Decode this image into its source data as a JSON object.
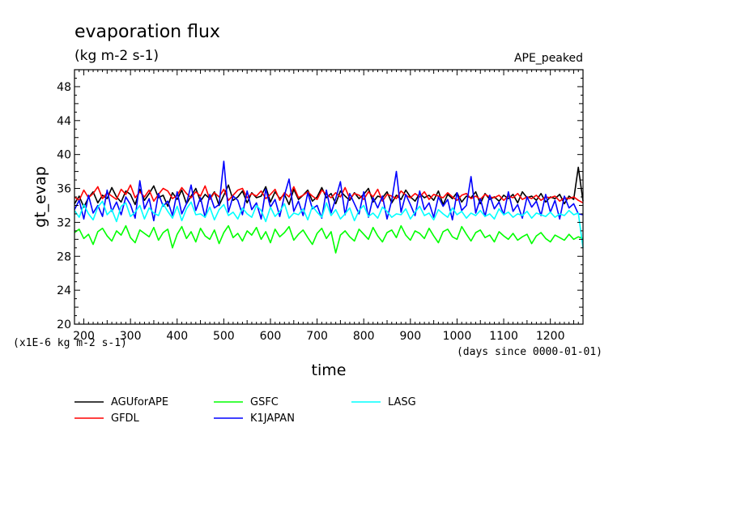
{
  "chart_data": {
    "type": "line",
    "title": "evaporation flux",
    "subtitle": "(kg m-2 s-1)",
    "case_label": "APE_peaked",
    "ylabel": "gt_evap",
    "xlabel": "time",
    "y_unit_note": "(x1E-6 kg m-2 s-1)",
    "x_unit_note": "(days since 0000-01-01)",
    "xlim": [
      180,
      1270
    ],
    "ylim": [
      20,
      50
    ],
    "x_ticks": [
      200,
      300,
      400,
      500,
      600,
      700,
      800,
      900,
      1000,
      1100,
      1200
    ],
    "y_ticks": [
      20,
      24,
      28,
      32,
      36,
      40,
      44,
      48
    ],
    "grid": false,
    "legend_position": "below",
    "x_sample_step": 10,
    "series": [
      {
        "name": "AGUforAPE",
        "color": "#000000",
        "values": [
          34.2,
          35.1,
          33.8,
          34.9,
          35.6,
          34.3,
          35.2,
          34.8,
          36.1,
          35.0,
          34.4,
          35.7,
          35.3,
          34.1,
          35.9,
          34.6,
          35.4,
          36.3,
          34.9,
          35.2,
          33.9,
          35.5,
          34.7,
          35.8,
          34.2,
          35.1,
          36.0,
          34.5,
          35.3,
          34.8,
          35.6,
          34.0,
          35.2,
          36.4,
          34.6,
          35.0,
          35.7,
          34.3,
          35.5,
          34.9,
          35.1,
          36.2,
          34.4,
          35.6,
          34.8,
          35.3,
          34.1,
          35.9,
          34.7,
          35.2,
          35.8,
          34.5,
          35.0,
          36.1,
          34.9,
          35.4,
          34.2,
          35.7,
          35.1,
          34.6,
          35.5,
          34.8,
          35.3,
          36.0,
          34.4,
          35.1,
          34.9,
          35.6,
          34.3,
          35.2,
          34.7,
          35.8,
          35.0,
          34.5,
          35.4,
          34.9,
          35.2,
          34.6,
          35.7,
          34.1,
          35.3,
          34.8,
          35.5,
          34.4,
          35.1,
          34.9,
          35.6,
          34.2,
          35.4,
          34.7,
          35.0,
          34.5,
          35.2,
          34.8,
          35.3,
          34.3,
          35.6,
          34.9,
          35.1,
          34.6,
          35.4,
          34.4,
          35.0,
          34.8,
          35.3,
          34.2,
          35.1,
          34.7,
          38.5,
          34.5
        ]
      },
      {
        "name": "GFDL",
        "color": "#ff0000",
        "values": [
          35.0,
          34.6,
          35.8,
          34.9,
          35.4,
          36.2,
          34.8,
          35.5,
          35.1,
          34.7,
          35.9,
          35.3,
          36.4,
          34.9,
          35.6,
          35.0,
          35.8,
          34.5,
          35.3,
          36.0,
          35.7,
          34.8,
          35.2,
          36.1,
          35.4,
          34.9,
          35.6,
          35.1,
          36.3,
          34.7,
          35.5,
          35.0,
          35.9,
          34.6,
          35.2,
          35.8,
          36.0,
          34.9,
          35.4,
          35.1,
          35.7,
          34.8,
          35.3,
          35.9,
          34.6,
          35.5,
          35.0,
          36.2,
          34.9,
          35.2,
          35.6,
          35.1,
          34.7,
          35.8,
          35.3,
          34.9,
          35.5,
          35.0,
          36.1,
          34.8,
          35.4,
          35.2,
          34.7,
          35.6,
          35.0,
          35.9,
          34.5,
          35.3,
          35.1,
          34.8,
          35.7,
          35.2,
          34.9,
          35.4,
          35.0,
          35.6,
          34.7,
          35.3,
          35.1,
          34.9,
          35.5,
          35.0,
          34.6,
          35.2,
          35.4,
          34.8,
          35.1,
          34.7,
          35.3,
          35.0,
          34.9,
          35.2,
          34.6,
          35.1,
          34.9,
          35.4,
          34.7,
          35.0,
          34.8,
          35.2,
          34.6,
          35.0,
          34.9,
          35.1,
          34.5,
          34.9,
          34.8,
          35.0,
          34.6,
          34.3
        ]
      },
      {
        "name": "GSFC",
        "color": "#00ff00",
        "values": [
          30.8,
          31.2,
          30.1,
          30.6,
          29.4,
          30.9,
          31.3,
          30.4,
          29.8,
          31.0,
          30.5,
          31.6,
          30.2,
          29.6,
          31.1,
          30.7,
          30.3,
          31.4,
          29.9,
          30.8,
          31.2,
          29.0,
          30.6,
          31.5,
          30.1,
          30.9,
          29.7,
          31.3,
          30.4,
          30.0,
          31.1,
          29.5,
          30.8,
          31.6,
          30.2,
          30.7,
          29.8,
          31.0,
          30.5,
          31.4,
          30.0,
          30.9,
          29.6,
          31.2,
          30.3,
          30.8,
          31.5,
          29.9,
          30.6,
          31.1,
          30.2,
          29.4,
          30.7,
          31.3,
          30.1,
          30.9,
          28.4,
          30.5,
          31.0,
          30.3,
          29.8,
          31.2,
          30.6,
          30.0,
          31.4,
          30.4,
          29.7,
          30.8,
          31.1,
          30.2,
          31.6,
          30.5,
          29.9,
          31.0,
          30.7,
          30.1,
          31.3,
          30.4,
          29.6,
          30.9,
          31.2,
          30.3,
          30.0,
          31.5,
          30.6,
          29.8,
          30.8,
          31.1,
          30.2,
          30.5,
          29.7,
          30.9,
          30.4,
          30.0,
          30.7,
          29.9,
          30.3,
          30.6,
          29.5,
          30.4,
          30.8,
          30.1,
          29.7,
          30.5,
          30.2,
          29.9,
          30.6,
          30.0,
          30.3,
          30.1
        ]
      },
      {
        "name": "K1JAPAN",
        "color": "#0000ff",
        "values": [
          33.5,
          34.6,
          32.4,
          35.2,
          33.1,
          34.0,
          32.7,
          35.8,
          33.3,
          34.4,
          32.9,
          35.0,
          34.1,
          32.5,
          36.9,
          33.6,
          34.8,
          32.2,
          35.4,
          33.9,
          34.5,
          32.8,
          35.6,
          33.0,
          34.2,
          36.4,
          33.4,
          34.9,
          32.6,
          35.3,
          33.7,
          34.1,
          39.2,
          33.2,
          35.1,
          34.6,
          32.9,
          35.7,
          33.5,
          34.3,
          32.4,
          35.9,
          33.8,
          34.7,
          32.7,
          35.2,
          37.1,
          33.3,
          34.5,
          32.8,
          35.5,
          33.6,
          34.0,
          32.5,
          35.8,
          33.1,
          34.8,
          36.8,
          32.9,
          35.4,
          34.2,
          33.0,
          35.6,
          32.6,
          34.9,
          33.7,
          35.1,
          32.4,
          34.6,
          38.0,
          33.2,
          35.3,
          34.1,
          32.8,
          35.7,
          33.5,
          34.3,
          32.6,
          35.0,
          33.9,
          34.7,
          32.3,
          35.5,
          33.4,
          34.0,
          37.4,
          33.1,
          34.8,
          32.7,
          35.2,
          33.6,
          34.4,
          32.9,
          35.6,
          33.3,
          34.1,
          32.5,
          35.0,
          33.8,
          34.5,
          32.8,
          35.3,
          33.2,
          34.6,
          32.4,
          35.1,
          33.7,
          34.2,
          33.0,
          32.9
        ]
      },
      {
        "name": "LASG",
        "color": "#00ffff",
        "values": [
          33.4,
          32.6,
          34.1,
          33.0,
          32.3,
          33.8,
          34.5,
          32.9,
          33.5,
          32.1,
          33.9,
          34.3,
          32.7,
          33.2,
          34.0,
          32.4,
          33.7,
          33.1,
          32.8,
          34.2,
          33.3,
          32.5,
          33.9,
          32.2,
          33.6,
          34.4,
          32.9,
          33.0,
          32.6,
          33.8,
          32.3,
          33.5,
          34.1,
          32.8,
          33.2,
          32.4,
          33.7,
          33.0,
          32.6,
          34.0,
          33.4,
          32.1,
          33.8,
          32.7,
          33.3,
          34.2,
          32.5,
          33.1,
          32.9,
          33.6,
          32.3,
          33.9,
          33.2,
          32.6,
          34.3,
          32.8,
          33.5,
          32.4,
          33.0,
          33.7,
          32.2,
          33.4,
          34.0,
          32.7,
          33.1,
          32.5,
          33.8,
          33.3,
          32.6,
          33.0,
          32.9,
          33.6,
          32.4,
          33.2,
          33.9,
          32.8,
          33.1,
          32.3,
          33.5,
          33.0,
          32.6,
          33.7,
          32.9,
          33.3,
          32.5,
          33.1,
          32.8,
          33.4,
          32.7,
          33.0,
          32.4,
          33.6,
          32.9,
          33.2,
          32.6,
          33.0,
          32.8,
          33.3,
          32.5,
          33.1,
          32.9,
          32.7,
          33.2,
          32.6,
          33.0,
          32.8,
          33.4,
          32.9,
          33.1,
          29.0
        ]
      }
    ]
  }
}
